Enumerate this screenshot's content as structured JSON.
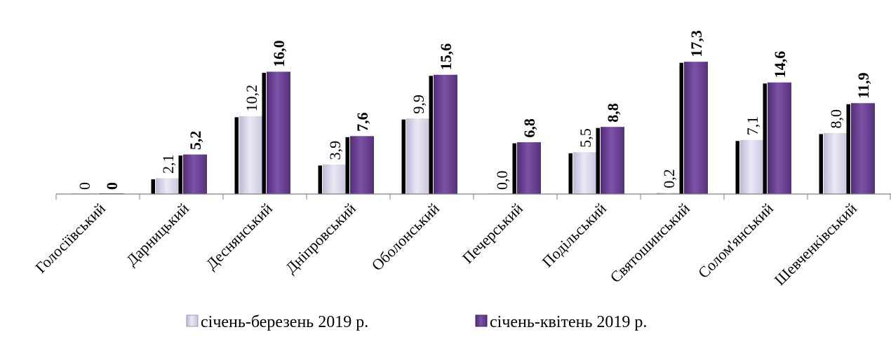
{
  "chart_data": {
    "type": "bar",
    "title": "",
    "xlabel": "",
    "ylabel": "",
    "ylim": [
      0,
      18
    ],
    "grid": false,
    "legend_position": "bottom",
    "categories": [
      "Голосіївський",
      "Дарницький",
      "Деснянський",
      "Дніпровський",
      "Оболонський",
      "Печерський",
      "Подільський",
      "Святошинський",
      "Солом'янський",
      "Шевченківський"
    ],
    "series": [
      {
        "name": "січень-березень 2019 р.",
        "values": [
          0,
          2.1,
          10.2,
          3.9,
          9.9,
          0.0,
          5.5,
          0.2,
          7.1,
          8.0
        ],
        "labels": [
          "0",
          "2,1",
          "10,2",
          "3,9",
          "9,9",
          "0,0",
          "5,5",
          "0,2",
          "7,1",
          "8,0"
        ],
        "color": "#d9d5ea"
      },
      {
        "name": "січень-квітень 2019 р.",
        "values": [
          0,
          5.2,
          16.0,
          7.6,
          15.6,
          6.8,
          8.8,
          17.3,
          14.6,
          11.9
        ],
        "labels": [
          "0",
          "5,2",
          "16,0",
          "7,6",
          "15,6",
          "6,8",
          "8,8",
          "17,3",
          "14,6",
          "11,9"
        ],
        "color": "#6b3f94"
      }
    ]
  }
}
